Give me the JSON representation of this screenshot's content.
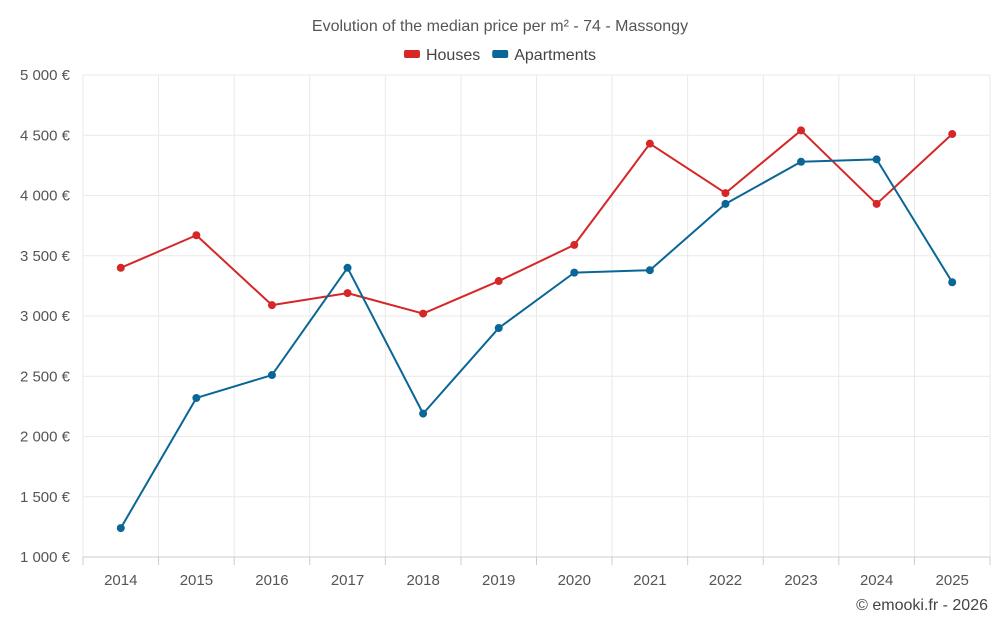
{
  "chart_data": {
    "type": "line",
    "title": "Evolution of the median price per m² - 74 - Massongy",
    "categories": [
      "2014",
      "2015",
      "2016",
      "2017",
      "2018",
      "2019",
      "2020",
      "2021",
      "2022",
      "2023",
      "2024",
      "2025"
    ],
    "ylim": [
      1000,
      5000
    ],
    "ytick_values": [
      1000,
      1500,
      2000,
      2500,
      3000,
      3500,
      4000,
      4500,
      5000
    ],
    "ytick_labels": [
      "1 000 €",
      "1 500 €",
      "2 000 €",
      "2 500 €",
      "3 000 €",
      "3 500 €",
      "4 000 €",
      "4 500 €",
      "5 000 €"
    ],
    "grid": true,
    "legend_position": "top-center",
    "series": [
      {
        "name": "Houses",
        "color": "#d62728",
        "values": [
          3400,
          3670,
          3090,
          3190,
          3020,
          3290,
          3590,
          4430,
          4020,
          4540,
          3930,
          4510
        ]
      },
      {
        "name": "Apartments",
        "color": "#0a6696",
        "values": [
          1240,
          2320,
          2510,
          3400,
          2190,
          2900,
          3360,
          3380,
          3930,
          4280,
          4300,
          3280
        ]
      }
    ]
  },
  "credit": "© emooki.fr - 2026"
}
